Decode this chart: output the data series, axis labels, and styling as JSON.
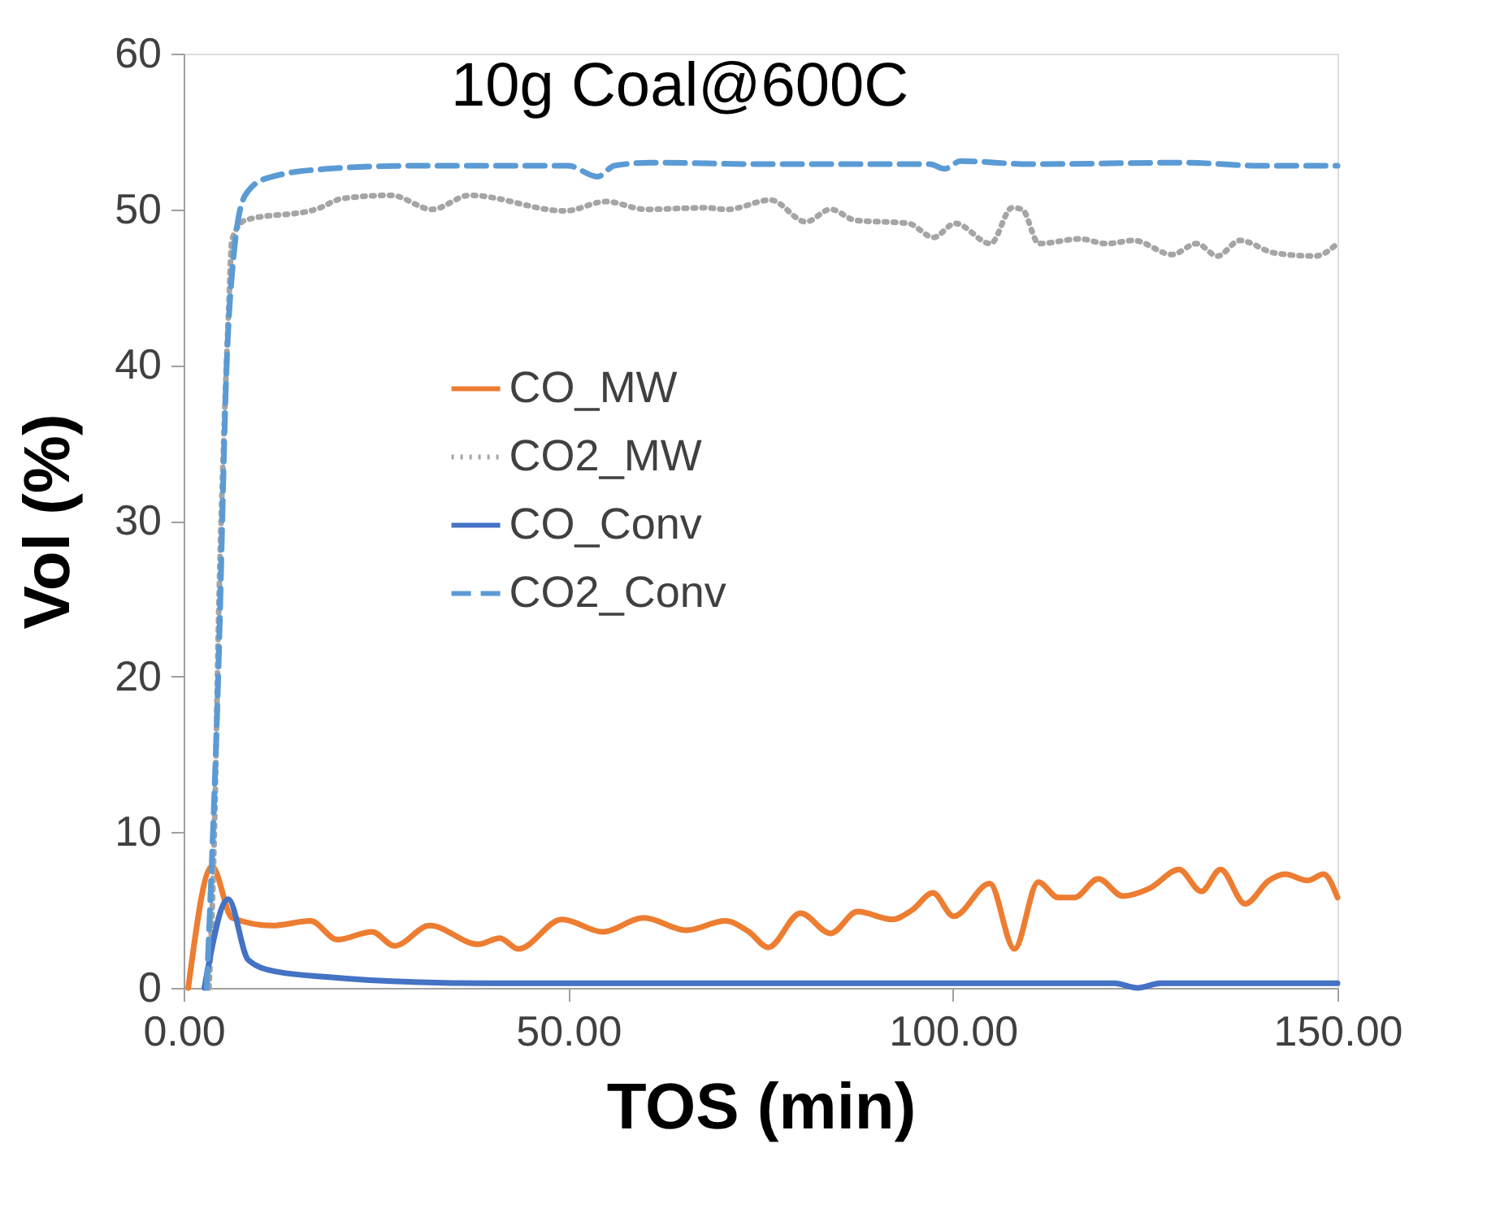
{
  "chart_data": {
    "type": "line",
    "title": "10g Coal@600C",
    "xlabel": "TOS (min)",
    "ylabel": "Vol (%)",
    "xlim": [
      0,
      150
    ],
    "xticks": [
      {
        "value": 0,
        "label": "0.00"
      },
      {
        "value": 50,
        "label": "50.00"
      },
      {
        "value": 100,
        "label": "100.00"
      },
      {
        "value": 150,
        "label": "150.00"
      }
    ],
    "ylim": [
      0,
      60
    ],
    "yticks": [
      0,
      10,
      20,
      30,
      40,
      50,
      60
    ],
    "grid": false,
    "legend": "center",
    "marker": "none",
    "series": [
      {
        "name": "CO_MW",
        "color": "#ed7d31",
        "line_style": "solid",
        "x": [
          0.6,
          3.7,
          6.3,
          11.5,
          16.5,
          20,
          24.5,
          27.4,
          32,
          38.3,
          41.1,
          43.5,
          49.2,
          54.5,
          59.8,
          65.4,
          70.4,
          73.5,
          76,
          80.2,
          84.1,
          87.6,
          92.1,
          94.7,
          97.4,
          100.1,
          104.8,
          108,
          111.1,
          113.7,
          115.8,
          118.9,
          122.1,
          125.6,
          129.4,
          132.3,
          134.8,
          138,
          141.1,
          143.2,
          146.1,
          148.2,
          150
        ],
        "values": [
          0,
          7.8,
          4.5,
          4.0,
          4.3,
          3.1,
          3.6,
          2.7,
          4.0,
          2.8,
          3.2,
          2.5,
          4.4,
          3.6,
          4.5,
          3.7,
          4.3,
          3.6,
          2.6,
          4.8,
          3.5,
          4.9,
          4.4,
          5.0,
          6.1,
          4.6,
          6.7,
          2.5,
          6.8,
          5.8,
          5.8,
          7.0,
          5.9,
          6.4,
          7.6,
          6.2,
          7.6,
          5.4,
          6.9,
          7.3,
          6.9,
          7.3,
          5.8
        ]
      },
      {
        "name": "CO2_MW",
        "color": "#a5a5a5",
        "line_style": "dotted",
        "x": [
          3.3,
          4.0,
          4.6,
          5.2,
          5.8,
          6.3,
          8,
          17.2,
          20.7,
          27,
          32.3,
          37.2,
          49.6,
          54.9,
          60.1,
          67.8,
          70.7,
          76.3,
          80.9,
          84.1,
          87.3,
          94.2,
          97.5,
          100.3,
          104.9,
          107.7,
          109,
          111.2,
          116.5,
          120,
          123.5,
          128.5,
          131.7,
          134.4,
          137.3,
          141.8,
          147.1,
          150
        ],
        "values": [
          0,
          10,
          25,
          35,
          42.9,
          48.1,
          49.3,
          50.0,
          50.7,
          50.9,
          50.0,
          50.9,
          49.9,
          50.5,
          50.0,
          50.1,
          50.0,
          50.6,
          49.2,
          50.0,
          49.3,
          49.1,
          48.2,
          49.1,
          47.8,
          50.1,
          50.0,
          47.8,
          48.1,
          47.8,
          48.0,
          47.1,
          47.8,
          47.0,
          48.0,
          47.2,
          47.0,
          47.8
        ]
      },
      {
        "name": "CO_Conv",
        "color": "#4472c4",
        "line_style": "solid",
        "x": [
          2.7,
          5.8,
          8.4,
          11.5,
          18.6,
          24.2,
          39.7,
          60,
          80,
          100,
          115,
          121,
          124,
          127,
          135,
          150
        ],
        "values": [
          0,
          5.7,
          1.8,
          1.1,
          0.7,
          0.5,
          0.3,
          0.3,
          0.3,
          0.3,
          0.3,
          0.3,
          0.0,
          0.3,
          0.3,
          0.3
        ]
      },
      {
        "name": "CO2_Conv",
        "color": "#5b9bd5",
        "line_style": "dashed",
        "x": [
          3.0,
          4.5,
          5.6,
          6.5,
          8.0,
          10.8,
          18.6,
          30,
          45,
          50,
          53.8,
          56,
          60.8,
          75,
          90,
          97,
          98.9,
          101,
          110,
          130,
          140,
          150
        ],
        "values": [
          0,
          20,
          40.1,
          47,
          50.9,
          52.0,
          52.6,
          52.8,
          52.8,
          52.8,
          52.1,
          52.8,
          53.0,
          52.9,
          52.9,
          52.9,
          52.6,
          53.1,
          52.9,
          53.0,
          52.8,
          52.8
        ]
      }
    ]
  }
}
